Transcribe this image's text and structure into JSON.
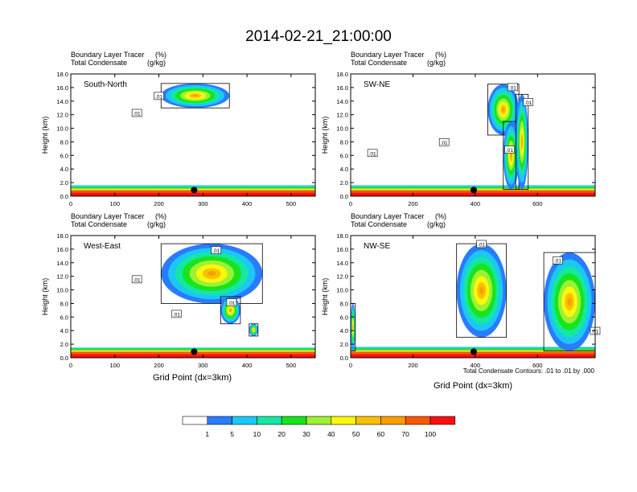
{
  "title": "2014-02-21_21:00:00",
  "colors": {
    "contour_bins": [
      "#ffffff",
      "#2a7cff",
      "#1bc8f4",
      "#15e6a4",
      "#18e41a",
      "#9ef033",
      "#f8f80c",
      "#f8c000",
      "#f89c00",
      "#f85800",
      "#f81010"
    ],
    "contour_line": "#000000"
  },
  "colorbar": {
    "labels": [
      "1",
      "5",
      "10",
      "20",
      "30",
      "40",
      "50",
      "60",
      "70",
      "100"
    ]
  },
  "panel_labels": {
    "line1": "Boundary Layer Tracer",
    "unit1": "(%)",
    "line2": "Total Condensate",
    "unit2": "(g/kg)"
  },
  "ylabel": "Height (km)",
  "xlabel": "Grid Point (dx=3km)",
  "contour_note": "Total Condensate Contours: .01 to .01 by .000",
  "contour_label": ".01",
  "chart_data": [
    {
      "type": "heatmap",
      "name": "South-North",
      "ylim": [
        0,
        18
      ],
      "yticks": [
        "0.0",
        "2.0",
        "4.0",
        "6.0",
        "8.0",
        "10.0",
        "12.0",
        "14.0",
        "16.0",
        "18.0"
      ],
      "xlim": [
        0,
        555
      ],
      "xticks": [
        0,
        100,
        200,
        300,
        400,
        500
      ],
      "marker_x": 280,
      "surface_layer_top_km": 1.6,
      "cloud_regions": [
        {
          "x": [
            205,
            360
          ],
          "y": [
            13.0,
            16.6
          ]
        }
      ],
      "contour_labels": [
        [
          200,
          14.7
        ],
        [
          150,
          12.2
        ]
      ]
    },
    {
      "type": "heatmap",
      "name": "SW-NE",
      "ylim": [
        0,
        18
      ],
      "yticks": [
        "0.0",
        "2.0",
        "4.0",
        "6.0",
        "8.0",
        "10.0",
        "12.0",
        "14.0",
        "16.0",
        "18.0"
      ],
      "xlim": [
        0,
        785
      ],
      "xticks": [
        0,
        200,
        400,
        600
      ],
      "marker_x": 395,
      "surface_layer_top_km": 1.6,
      "cloud_regions": [
        {
          "x": [
            440,
            540
          ],
          "y": [
            9.0,
            16.5
          ]
        },
        {
          "x": [
            490,
            540
          ],
          "y": [
            1.0,
            11.0
          ]
        },
        {
          "x": [
            530,
            570
          ],
          "y": [
            1.0,
            15.0
          ]
        }
      ],
      "contour_labels": [
        [
          520,
          16.0
        ],
        [
          570,
          13.8
        ],
        [
          300,
          7.9
        ],
        [
          70,
          6.3
        ],
        [
          510,
          6.8
        ]
      ]
    },
    {
      "type": "heatmap",
      "name": "West-East",
      "ylim": [
        0,
        18
      ],
      "yticks": [
        "0.0",
        "2.0",
        "4.0",
        "6.0",
        "8.0",
        "10.0",
        "12.0",
        "14.0",
        "16.0",
        "18.0"
      ],
      "xlim": [
        0,
        555
      ],
      "xticks": [
        0,
        100,
        200,
        300,
        400,
        500
      ],
      "marker_x": 280,
      "surface_layer_top_km": 1.5,
      "cloud_regions": [
        {
          "x": [
            205,
            435
          ],
          "y": [
            8.0,
            16.8
          ]
        },
        {
          "x": [
            340,
            385
          ],
          "y": [
            5.0,
            9.0
          ]
        },
        {
          "x": [
            405,
            425
          ],
          "y": [
            3.2,
            5.0
          ]
        }
      ],
      "contour_labels": [
        [
          330,
          15.8
        ],
        [
          150,
          11.5
        ],
        [
          240,
          6.4
        ],
        [
          365,
          8.1
        ]
      ]
    },
    {
      "type": "heatmap",
      "name": "NW-SE",
      "ylim": [
        0,
        18
      ],
      "yticks": [
        "0.0",
        "2.0",
        "4.0",
        "6.0",
        "8.0",
        "10.0",
        "12.0",
        "14.0",
        "16.0",
        "18.0"
      ],
      "xlim": [
        0,
        785
      ],
      "xticks": [
        0,
        200,
        400,
        600
      ],
      "marker_x": 395,
      "surface_layer_top_km": 1.6,
      "cloud_regions": [
        {
          "x": [
            340,
            500
          ],
          "y": [
            3.0,
            16.8
          ]
        },
        {
          "x": [
            620,
            785
          ],
          "y": [
            1.0,
            15.5
          ]
        },
        {
          "x": [
            0,
            15
          ],
          "y": [
            1.0,
            8.0
          ]
        }
      ],
      "contour_labels": [
        [
          420,
          16.7
        ],
        [
          665,
          14.3
        ],
        [
          785,
          3.9
        ]
      ]
    }
  ]
}
